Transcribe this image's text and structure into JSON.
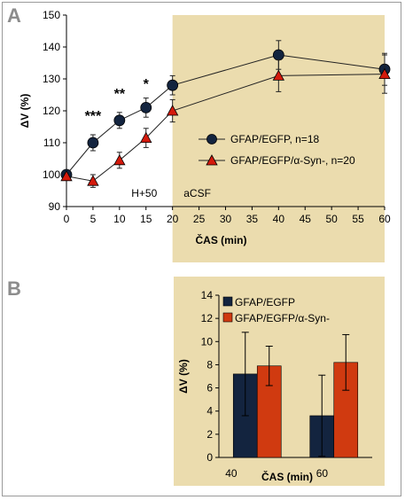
{
  "panels": {
    "a_letter": "A",
    "b_letter": "B"
  },
  "colors": {
    "shade": "#ebdcae",
    "line_navy": "#13243f",
    "marker_red": "#d41a0c",
    "bar_navy": "#13243f",
    "bar_orange": "#d03a10",
    "letter_gray": "#8c8c8c"
  },
  "chart_data": [
    {
      "type": "line",
      "panel": "A",
      "xlabel": "ČAS (min)",
      "ylabel": "ΔV (%)",
      "xlim": [
        0,
        60
      ],
      "ylim": [
        90,
        150
      ],
      "xticks": [
        0,
        5,
        10,
        15,
        20,
        25,
        30,
        35,
        40,
        45,
        50,
        55,
        60
      ],
      "yticks": [
        90,
        100,
        110,
        120,
        130,
        140,
        150
      ],
      "grid": false,
      "legend_position": "right",
      "shaded_region_start": 20,
      "annotations": [
        {
          "text": "H+50",
          "x": 15,
          "y": 93
        },
        {
          "text": "aCSF",
          "x": 25,
          "y": 93
        },
        {
          "text": "***",
          "x": 5,
          "y": 118
        },
        {
          "text": "**",
          "x": 10,
          "y": 125
        },
        {
          "text": "*",
          "x": 15,
          "y": 128
        }
      ],
      "series": [
        {
          "name": "GFAP/EGFP, n=18",
          "marker": "circle",
          "x": [
            0,
            5,
            10,
            15,
            20,
            40,
            60
          ],
          "y": [
            100,
            110,
            117,
            121,
            128,
            137.5,
            133
          ],
          "err": [
            1,
            2.5,
            2.5,
            3,
            3,
            4.5,
            5
          ]
        },
        {
          "name": "GFAP/EGFP/α-Syn-, n=20",
          "marker": "triangle",
          "x": [
            0,
            5,
            10,
            15,
            20,
            40,
            60
          ],
          "y": [
            99.5,
            98,
            104.5,
            111.5,
            120,
            131,
            131.5
          ],
          "err": [
            1,
            2,
            2.5,
            3,
            3.5,
            5,
            6
          ]
        }
      ]
    },
    {
      "type": "bar",
      "panel": "B",
      "xlabel": "ČAS (min)",
      "ylabel": "ΔV (%)",
      "categories": [
        "40",
        "60"
      ],
      "ylim": [
        0,
        14
      ],
      "yticks": [
        0,
        2,
        4,
        6,
        8,
        10,
        12,
        14
      ],
      "grid": false,
      "legend_position": "top-left",
      "series": [
        {
          "name": "GFAP/EGFP",
          "values": [
            7.2,
            3.6
          ],
          "err": [
            3.6,
            3.5
          ]
        },
        {
          "name": "GFAP/EGFP/α-Syn-",
          "values": [
            7.9,
            8.2
          ],
          "err": [
            1.7,
            2.4
          ]
        }
      ]
    }
  ]
}
